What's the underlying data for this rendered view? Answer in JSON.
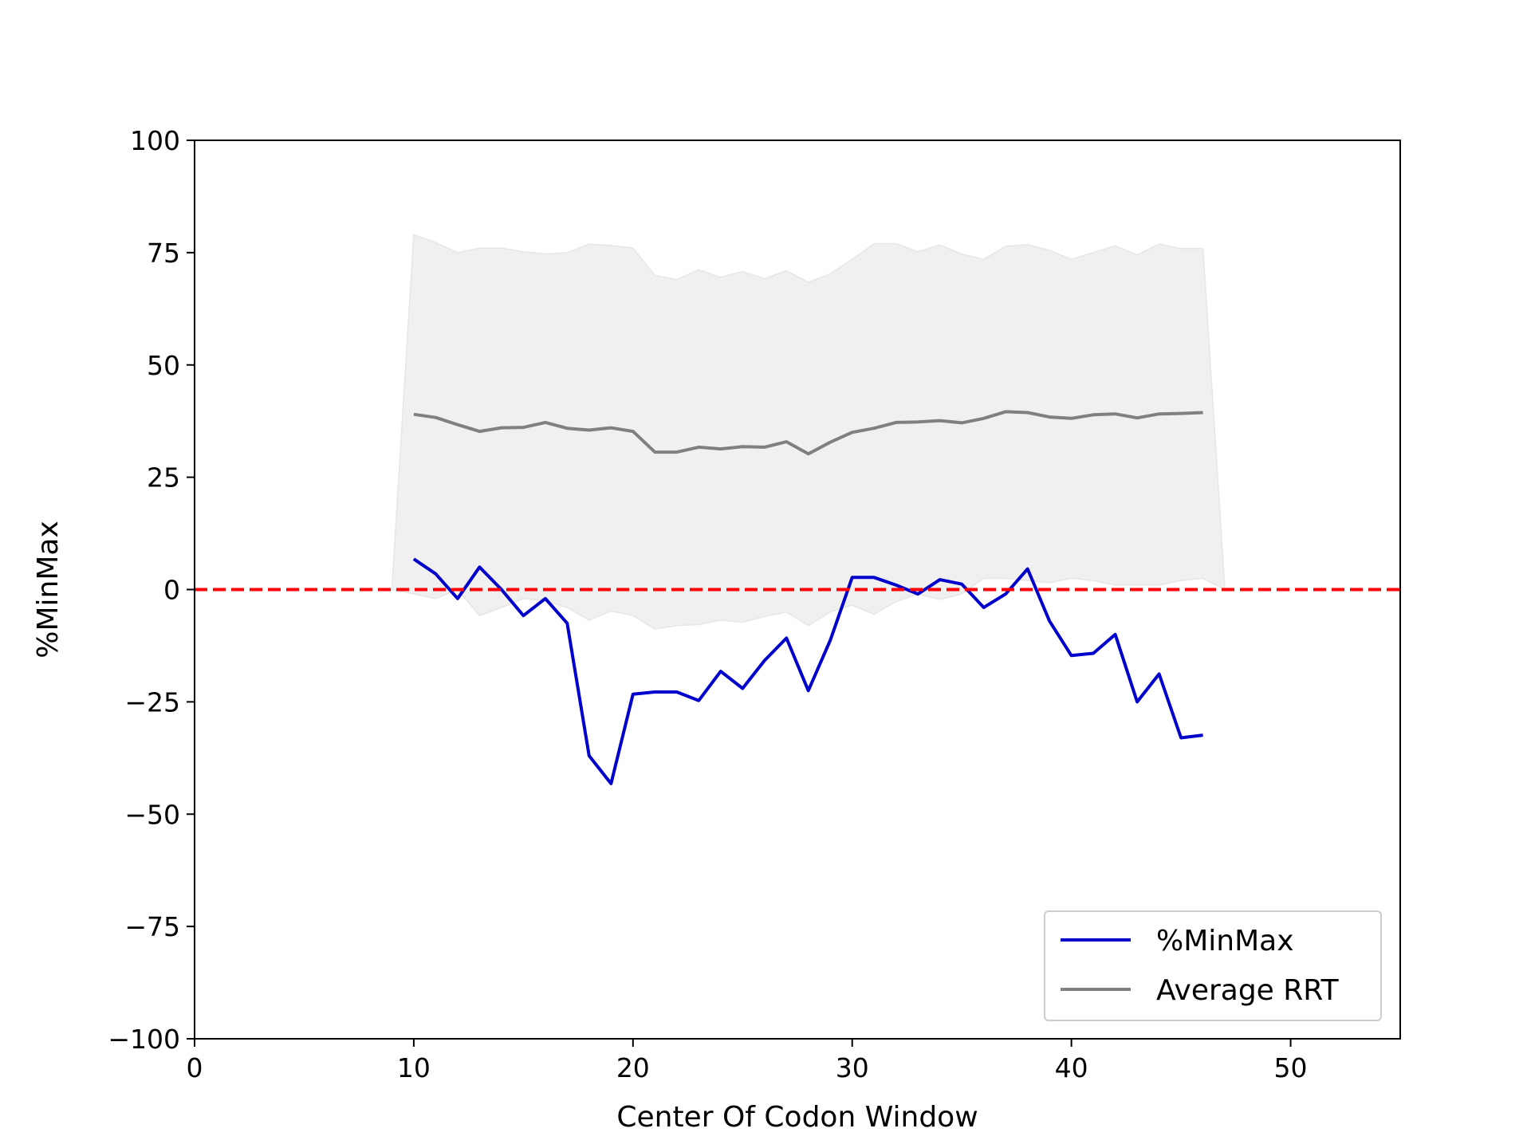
{
  "chart_data": {
    "type": "line",
    "title": "",
    "xlabel": "Center Of Codon Window",
    "ylabel": "%MinMax",
    "xlim": [
      0,
      55
    ],
    "ylim": [
      -100,
      100
    ],
    "xticks": [
      0,
      10,
      20,
      30,
      40,
      50
    ],
    "yticks": [
      100,
      75,
      50,
      25,
      0,
      -25,
      -50,
      -75,
      -100
    ],
    "ytick_labels": [
      "100",
      "75",
      "50",
      "25",
      "0",
      "−25",
      "−50",
      "−75",
      "−100"
    ],
    "grid": false,
    "legend_position": "lower-right",
    "x": [
      10,
      11,
      12,
      13,
      14,
      15,
      16,
      17,
      18,
      19,
      20,
      21,
      22,
      23,
      24,
      25,
      26,
      27,
      28,
      29,
      30,
      31,
      32,
      33,
      34,
      35,
      36,
      37,
      38,
      39,
      40,
      41,
      42,
      43,
      44,
      45,
      46
    ],
    "series": [
      {
        "name": "%MinMax",
        "color": "#0000cc",
        "values": [
          6.8,
          3.5,
          -2,
          5,
          0,
          -5.8,
          -2,
          -7.5,
          -37,
          -43.2,
          -23.3,
          -22.8,
          -22.8,
          -24.7,
          -18.2,
          -22,
          -15.8,
          -10.8,
          -22.5,
          -11.3,
          2.7,
          2.7,
          1,
          -1,
          2.2,
          1.2,
          -4,
          -1,
          4.6,
          -7,
          -14.7,
          -14.2,
          -10,
          -25,
          -18.8,
          -33,
          -32.4
        ]
      },
      {
        "name": "Average RRT",
        "color": "#808080",
        "values": [
          39,
          38.3,
          36.7,
          35.2,
          36,
          36.1,
          37.2,
          35.9,
          35.5,
          36,
          35.2,
          30.6,
          30.6,
          31.7,
          31.3,
          31.8,
          31.7,
          32.9,
          30.2,
          32.8,
          35,
          35.9,
          37.2,
          37.3,
          37.6,
          37.1,
          38.1,
          39.6,
          39.4,
          38.4,
          38.1,
          38.9,
          39.1,
          38.2,
          39.1,
          39.2,
          39.4
        ]
      }
    ],
    "band": {
      "color": "#f0f0f0",
      "x": [
        9,
        10,
        11,
        12,
        13,
        14,
        15,
        16,
        17,
        18,
        19,
        20,
        21,
        22,
        23,
        24,
        25,
        26,
        27,
        28,
        29,
        30,
        31,
        32,
        33,
        34,
        35,
        36,
        37,
        38,
        39,
        40,
        41,
        42,
        43,
        44,
        45,
        46,
        47
      ],
      "upper": [
        0,
        79,
        77.2,
        75,
        76,
        76,
        75.2,
        74.7,
        75,
        76.9,
        76.6,
        76,
        69.9,
        69,
        71.2,
        69.5,
        70.8,
        69.2,
        71,
        68.4,
        70.3,
        73.5,
        77,
        77,
        75.2,
        76.7,
        74.7,
        73.5,
        76.4,
        76.8,
        75.5,
        73.5,
        75,
        76.5,
        74.5,
        76.9,
        75.9,
        75.9,
        0
      ],
      "lower": [
        0,
        -1,
        -2,
        0,
        -5.8,
        -4,
        -2,
        -2.5,
        -4,
        -6.8,
        -4.8,
        -5.8,
        -8.8,
        -8,
        -7.8,
        -6.8,
        -7.3,
        -6,
        -5,
        -8,
        -5,
        -3.5,
        -5.5,
        -2.7,
        -1,
        -2.2,
        -1,
        2.5,
        2.5,
        2,
        1.5,
        2.5,
        2,
        1,
        1,
        1,
        2,
        2.5,
        0
      ]
    },
    "reference_line": {
      "y": 0,
      "color": "#ff0000",
      "style": "dashed"
    }
  }
}
